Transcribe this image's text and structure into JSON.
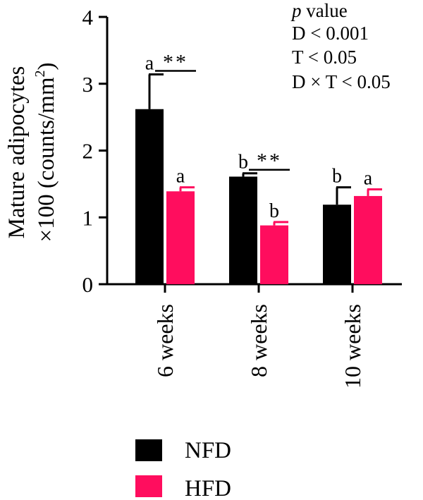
{
  "chart_data": {
    "type": "bar",
    "ylabel_line1": "Mature adipocytes",
    "ylabel_line2_prefix": "×100 (counts/mm",
    "ylabel_line2_sup": "2",
    "ylabel_line2_suffix": ")",
    "ylim": [
      0,
      4
    ],
    "yticks": [
      "0",
      "1",
      "2",
      "3",
      "4"
    ],
    "categories": [
      "6 weeks",
      "8 weeks",
      "10 weeks"
    ],
    "series": [
      {
        "name": "NFD",
        "color": "#000000",
        "values": [
          2.62,
          1.61,
          1.19
        ],
        "errors": [
          0.52,
          0.05,
          0.26
        ],
        "letters": [
          "a",
          "b",
          "b"
        ]
      },
      {
        "name": "HFD",
        "color": "#ff0d5e",
        "values": [
          1.39,
          0.88,
          1.32
        ],
        "errors": [
          0.06,
          0.05,
          0.1
        ],
        "letters": [
          "a",
          "b",
          "a"
        ]
      }
    ],
    "significance": [
      {
        "category_index": 0,
        "label": "**"
      },
      {
        "category_index": 1,
        "label": "**"
      }
    ],
    "annotation": {
      "p_italic": "p",
      "p_rest": " value",
      "lines": [
        "D < 0.001",
        "T < 0.05",
        "D × T < 0.05"
      ]
    },
    "legend_placement": "bottom-left",
    "grid": false
  }
}
